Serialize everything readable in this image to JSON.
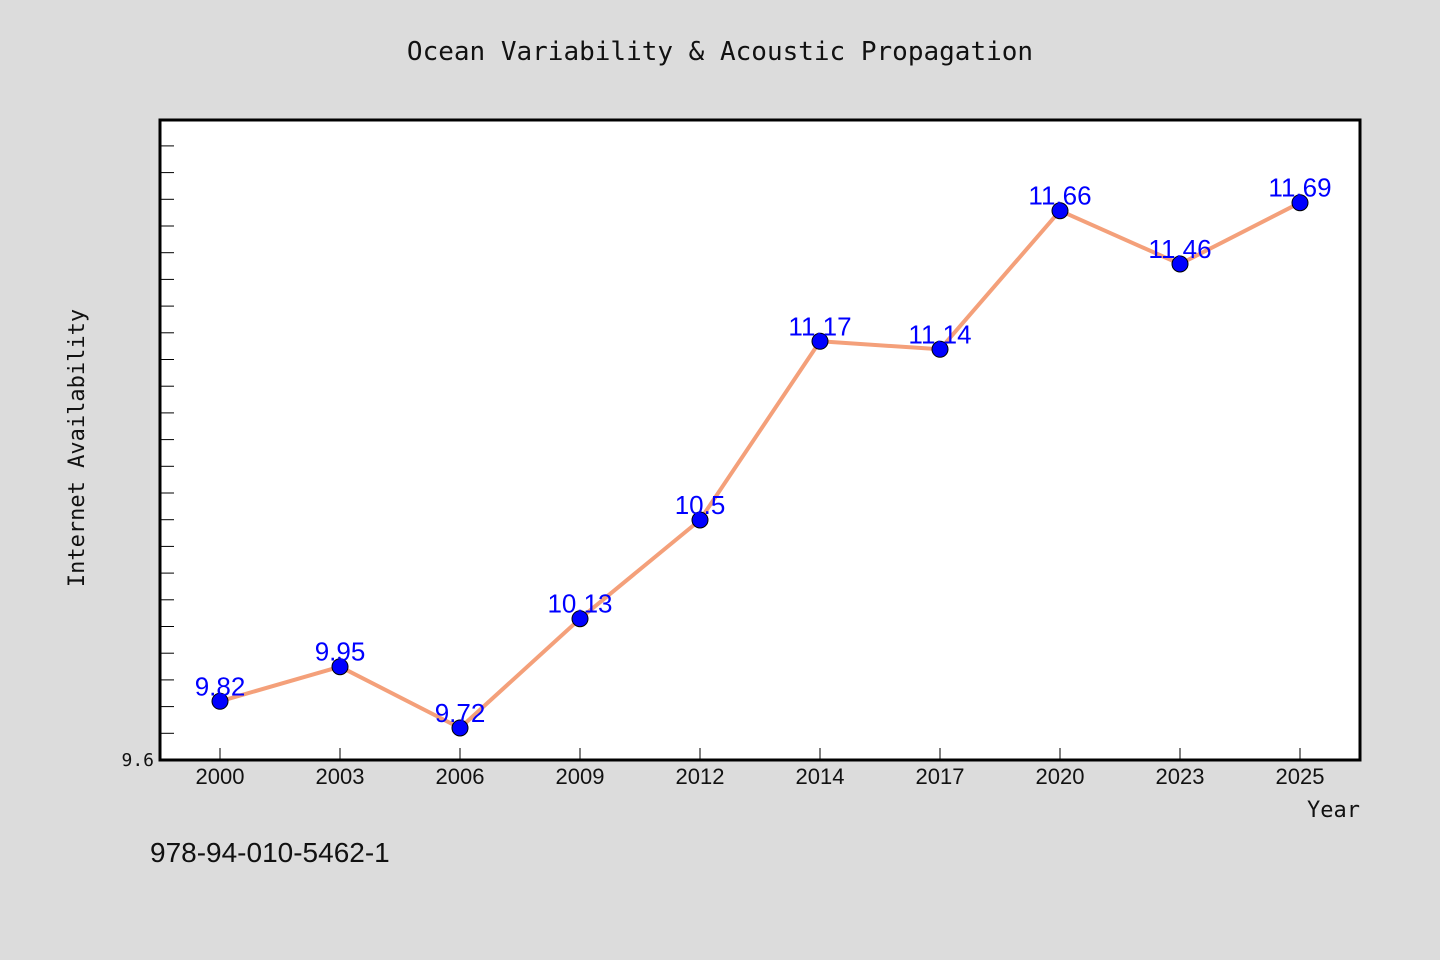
{
  "chart_data": {
    "type": "line",
    "title": "Ocean Variability & Acoustic Propagation",
    "xlabel": "Year",
    "ylabel": "Internet Availability",
    "categories": [
      "2000",
      "2003",
      "2006",
      "2009",
      "2012",
      "2014",
      "2017",
      "2020",
      "2023",
      "2025"
    ],
    "values": [
      9.82,
      9.95,
      9.72,
      10.13,
      10.5,
      11.17,
      11.14,
      11.66,
      11.46,
      11.69
    ],
    "data_labels": [
      "9.82",
      "9.95",
      "9.72",
      "10.13",
      "10.5",
      "11.17",
      "11.14",
      "11.66",
      "11.46",
      "11.69"
    ],
    "yticks": [
      "9.6"
    ],
    "ylim": [
      9.6,
      12.0
    ],
    "grid": false,
    "line_color": "#f4a07a",
    "marker_color": "#0000ff",
    "label_color": "#0000ff"
  },
  "footer": {
    "isbn": "978-94-010-5462-1"
  }
}
